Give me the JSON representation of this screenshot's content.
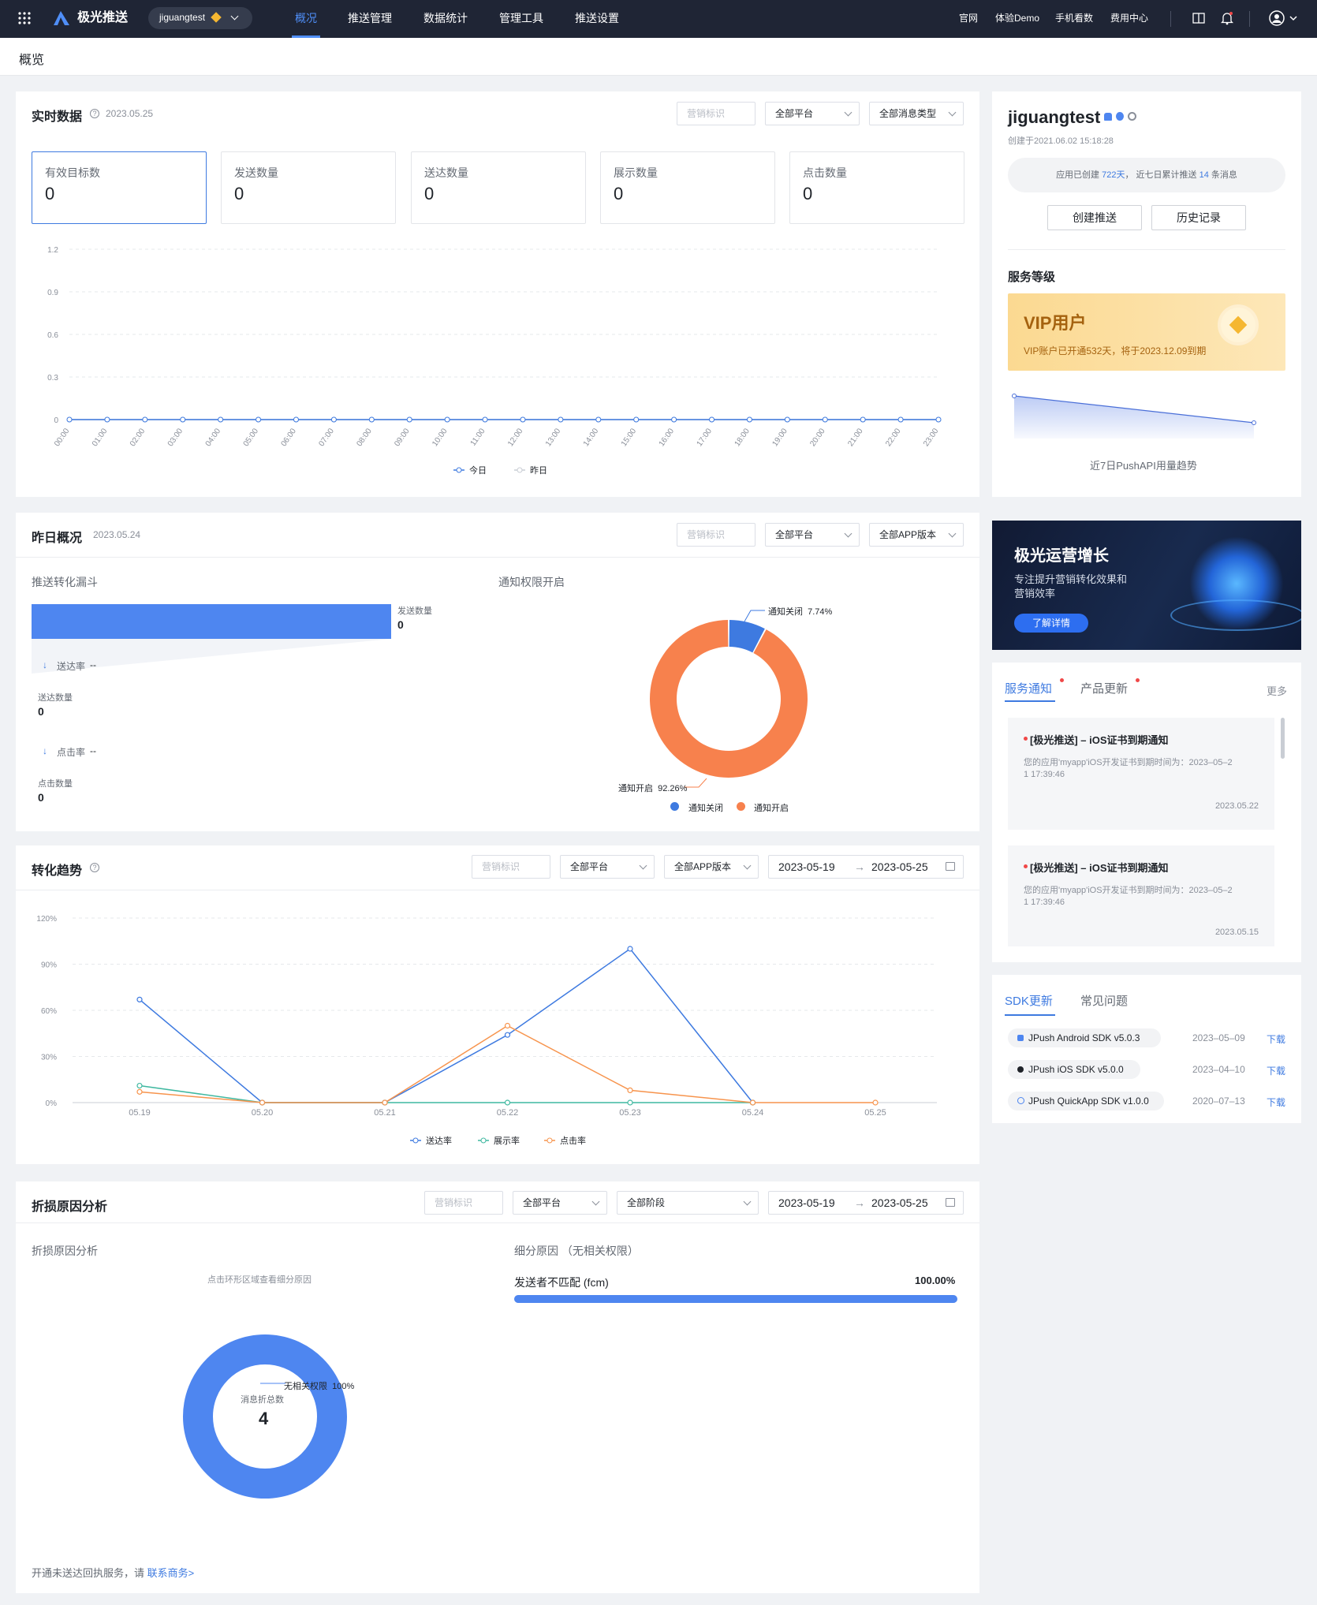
{
  "topbar": {
    "logo_text": "极光推送",
    "app_selector": "jiguangtest",
    "nav": [
      "概况",
      "推送管理",
      "数据统计",
      "管理工具",
      "推送设置"
    ],
    "right_links": [
      "官网",
      "体验Demo",
      "手机看数",
      "费用中心"
    ]
  },
  "breadcrumb": "概览",
  "realtime": {
    "title": "实时数据",
    "date": "2023.05.25",
    "filters": {
      "tag": "营销标识",
      "platform": "全部平台",
      "msgtype": "全部消息类型"
    },
    "stats": [
      {
        "label": "有效目标数",
        "value": "0"
      },
      {
        "label": "发送数量",
        "value": "0"
      },
      {
        "label": "送达数量",
        "value": "0"
      },
      {
        "label": "展示数量",
        "value": "0"
      },
      {
        "label": "点击数量",
        "value": "0"
      }
    ],
    "legend": [
      "今日",
      "昨日"
    ]
  },
  "yesterday": {
    "title": "昨日概况",
    "date": "2023.05.24",
    "filters": {
      "tag": "营销标识",
      "platform": "全部平台",
      "version": "全部APP版本"
    },
    "funnel_title": "推送转化漏斗",
    "funnel": {
      "send_label": "发送数量",
      "send_value": "0",
      "rate1_label": "送达率",
      "rate1_value": "--",
      "deliver_label": "送达数量",
      "deliver_value": "0",
      "rate2_label": "点击率",
      "rate2_value": "--",
      "click_label": "点击数量",
      "click_value": "0"
    },
    "perm_title": "通知权限开启",
    "perm_off_label": "通知关闭  7.74%",
    "perm_on_label": "通知开启  92.26%",
    "legend": [
      "通知关闭",
      "通知开启"
    ]
  },
  "trend": {
    "title": "转化趋势",
    "filters": {
      "tag": "营销标识",
      "platform": "全部平台",
      "version": "全部APP版本",
      "start": "2023-05-19",
      "end": "2023-05-25"
    },
    "legend": [
      "送达率",
      "展示率",
      "点击率"
    ]
  },
  "loss": {
    "title": "折损原因分析",
    "filters": {
      "tag": "营销标识",
      "platform": "全部平台",
      "stage": "全部阶段",
      "start": "2023-05-19",
      "end": "2023-05-25"
    },
    "left_title": "折损原因分析",
    "hint": "点击环形区域查看细分原因",
    "donut_label": "无相关权限  100%",
    "center_label": "消息折总数",
    "center_value": "4",
    "right_title": "细分原因 （无相关权限）",
    "reason_label": "发送者不匹配 (fcm)",
    "reason_value": "100.00%",
    "reason_percent": 100,
    "footer_text": "开通未送达回执服务，请 ",
    "footer_link": "联系商务>"
  },
  "account": {
    "name": "jiguangtest",
    "created": "创建于2021.06.02 15:18:28",
    "summary_pre": "应用已创建 ",
    "days": "722天",
    "summary_mid": "，  近七日累计推送 ",
    "count": "14",
    "summary_post": " 条消息",
    "btn_create": "创建推送",
    "btn_history": "历史记录",
    "service_level": "服务等级",
    "vip_title": "VIP用户",
    "vip_desc": "VIP账户已开通532天，将于2023.12.09到期",
    "api_trend": "近7日PushAPI用量趋势"
  },
  "banner": {
    "title": "极光运营增长",
    "desc1": "专注提升营销转化效果和",
    "desc2": "营销效率",
    "button": "了解详情"
  },
  "notices": {
    "tabs": [
      "服务通知",
      "产品更新"
    ],
    "more": "更多",
    "items": [
      {
        "title": "[极光推送] – iOS证书到期通知",
        "body1": "您的应用'myapp'iOS开发证书到期时间为：2023–05–2",
        "body2": "1 17:39:46",
        "date": "2023.05.22"
      },
      {
        "title": "[极光推送] – iOS证书到期通知",
        "body1": "您的应用'myapp'iOS开发证书到期时间为：2023–05–2",
        "body2": "1 17:39:46",
        "date": "2023.05.15"
      }
    ]
  },
  "sdk": {
    "tabs": [
      "SDK更新",
      "常见问题"
    ],
    "items": [
      {
        "name": "JPush Android SDK v5.0.3",
        "date": "2023–05–09",
        "action": "下载"
      },
      {
        "name": "JPush iOS SDK v5.0.0",
        "date": "2023–04–10",
        "action": "下载"
      },
      {
        "name": "JPush QuickApp SDK v1.0.0",
        "date": "2020–07–13",
        "action": "下载"
      }
    ]
  },
  "chart_data": [
    {
      "type": "line",
      "x": [
        "00:00",
        "01:00",
        "02:00",
        "03:00",
        "04:00",
        "05:00",
        "06:00",
        "07:00",
        "08:00",
        "09:00",
        "10:00",
        "11:00",
        "12:00",
        "13:00",
        "14:00",
        "15:00",
        "16:00",
        "17:00",
        "18:00",
        "19:00",
        "20:00",
        "21:00",
        "22:00",
        "23:00"
      ],
      "ylim": [
        0,
        1.2
      ],
      "yticks": [
        "0",
        "0.3",
        "0.6",
        "0.9",
        "1.2"
      ],
      "series": [
        {
          "name": "今日",
          "color": "#3e7ae0",
          "values": [
            0,
            0,
            0,
            0,
            0,
            0,
            0,
            0,
            0,
            0,
            0,
            0,
            0,
            0,
            0,
            0,
            0,
            0,
            0,
            0,
            0,
            0,
            0,
            0
          ]
        },
        {
          "name": "昨日",
          "color": "#c9cdd4",
          "values": [
            0,
            0,
            0,
            0,
            0,
            0,
            0,
            0,
            0,
            0,
            0,
            0,
            0,
            0,
            0,
            0,
            0,
            0,
            0,
            0,
            0,
            0,
            0,
            0
          ]
        }
      ]
    },
    {
      "type": "pie",
      "categories": [
        "通知关闭",
        "通知开启"
      ],
      "values": [
        7.74,
        92.26
      ],
      "colors": [
        "#3e7ae0",
        "#f7814d"
      ]
    },
    {
      "type": "line",
      "x": [
        "05.19",
        "05.20",
        "05.21",
        "05.22",
        "05.23",
        "05.24",
        "05.25"
      ],
      "ylim": [
        0,
        120
      ],
      "yticks": [
        "0%",
        "30%",
        "60%",
        "90%",
        "120%"
      ],
      "series": [
        {
          "name": "送达率",
          "color": "#3e7ae0",
          "values": [
            67,
            0,
            0,
            44,
            100,
            0,
            null
          ]
        },
        {
          "name": "展示率",
          "color": "#3fb8a0",
          "values": [
            11,
            0,
            0,
            0,
            0,
            0,
            null
          ]
        },
        {
          "name": "点击率",
          "color": "#f7944d",
          "values": [
            7,
            0,
            0,
            50,
            8,
            0,
            0
          ]
        }
      ]
    },
    {
      "type": "pie",
      "categories": [
        "无相关权限"
      ],
      "values": [
        100
      ],
      "colors": [
        "#4e86f0"
      ]
    },
    {
      "type": "area",
      "x": [
        "1",
        "2"
      ],
      "values": [
        1.0,
        0.0
      ],
      "color": "#6a8ce8"
    }
  ]
}
